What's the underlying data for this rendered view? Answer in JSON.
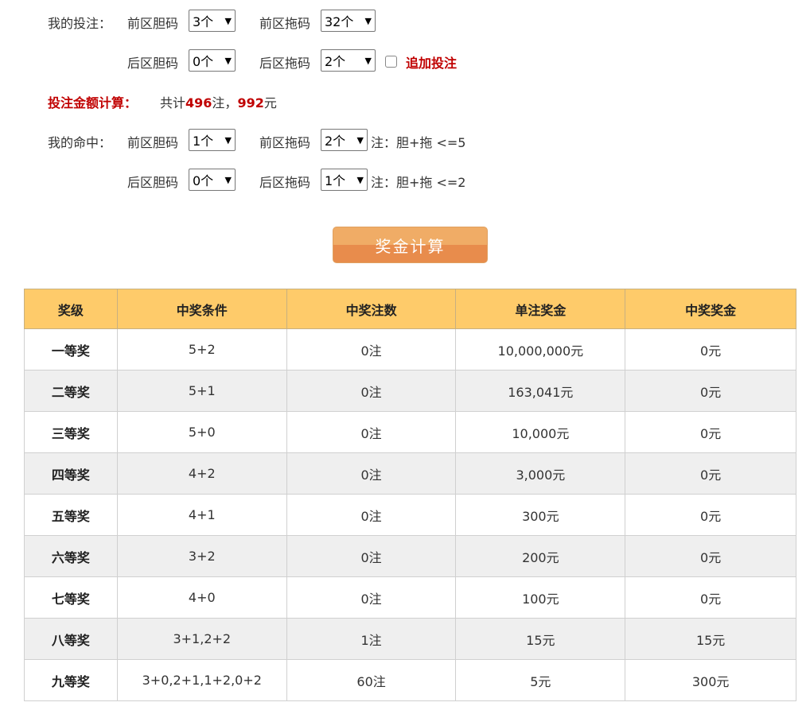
{
  "bet": {
    "label": "我的投注：",
    "front_dan_label": "前区胆码",
    "front_dan": "3个",
    "front_tuo_label": "前区拖码",
    "front_tuo": "32个",
    "back_dan_label": "后区胆码",
    "back_dan": "0个",
    "back_tuo_label": "后区拖码",
    "back_tuo": "2个",
    "extra_label": "追加投注",
    "extra_checked": false
  },
  "amount": {
    "label": "投注金额计算：",
    "prefix": "共计",
    "count": "496",
    "mid": "注，",
    "money": "992",
    "suffix": "元"
  },
  "hit": {
    "label": "我的命中：",
    "front_dan_label": "前区胆码",
    "front_dan": "1个",
    "front_tuo_label": "前区拖码",
    "front_tuo": "2个",
    "front_note": "注：胆+拖 <=5",
    "back_dan_label": "后区胆码",
    "back_dan": "0个",
    "back_tuo_label": "后区拖码",
    "back_tuo": "1个",
    "back_note": "注：胆+拖 <=2"
  },
  "calc_button": "奖金计算",
  "table": {
    "headers": [
      "奖级",
      "中奖条件",
      "中奖注数",
      "单注奖金",
      "中奖奖金"
    ],
    "rows": [
      [
        "一等奖",
        "5+2",
        "0注",
        "10,000,000元",
        "0元"
      ],
      [
        "二等奖",
        "5+1",
        "0注",
        "163,041元",
        "0元"
      ],
      [
        "三等奖",
        "5+0",
        "0注",
        "10,000元",
        "0元"
      ],
      [
        "四等奖",
        "4+2",
        "0注",
        "3,000元",
        "0元"
      ],
      [
        "五等奖",
        "4+1",
        "0注",
        "300元",
        "0元"
      ],
      [
        "六等奖",
        "3+2",
        "0注",
        "200元",
        "0元"
      ],
      [
        "七等奖",
        "4+0",
        "0注",
        "100元",
        "0元"
      ],
      [
        "八等奖",
        "3+1,2+2",
        "1注",
        "15元",
        "15元"
      ],
      [
        "九等奖",
        "3+0,2+1,1+2,0+2",
        "60注",
        "5元",
        "300元"
      ]
    ]
  }
}
